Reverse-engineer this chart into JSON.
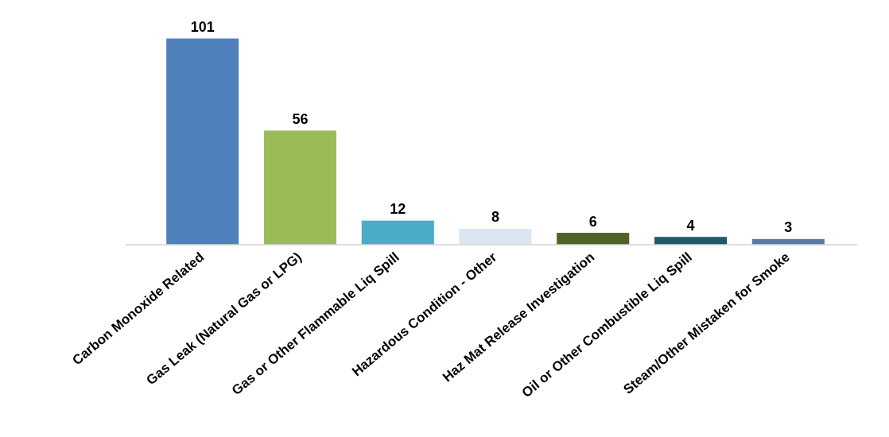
{
  "chart_data": {
    "type": "bar",
    "categories": [
      "Carbon Monoxide Related",
      "Gas Leak (Natural Gas or LPG)",
      "Gas or Other Flammable Liq Spill",
      "Hazardous Condition - Other",
      "Haz Mat Release Investigation",
      "Oil or Other Combustible Liq Spill",
      "Steam/Other Mistaken for Smoke"
    ],
    "values": [
      101,
      56,
      12,
      8,
      6,
      4,
      3
    ],
    "colors": [
      "#4f81bd",
      "#9bbb59",
      "#4bacc6",
      "#dce6f2",
      "#4f6228",
      "#215968",
      "#5a7aa5"
    ],
    "data_labels": true
  }
}
